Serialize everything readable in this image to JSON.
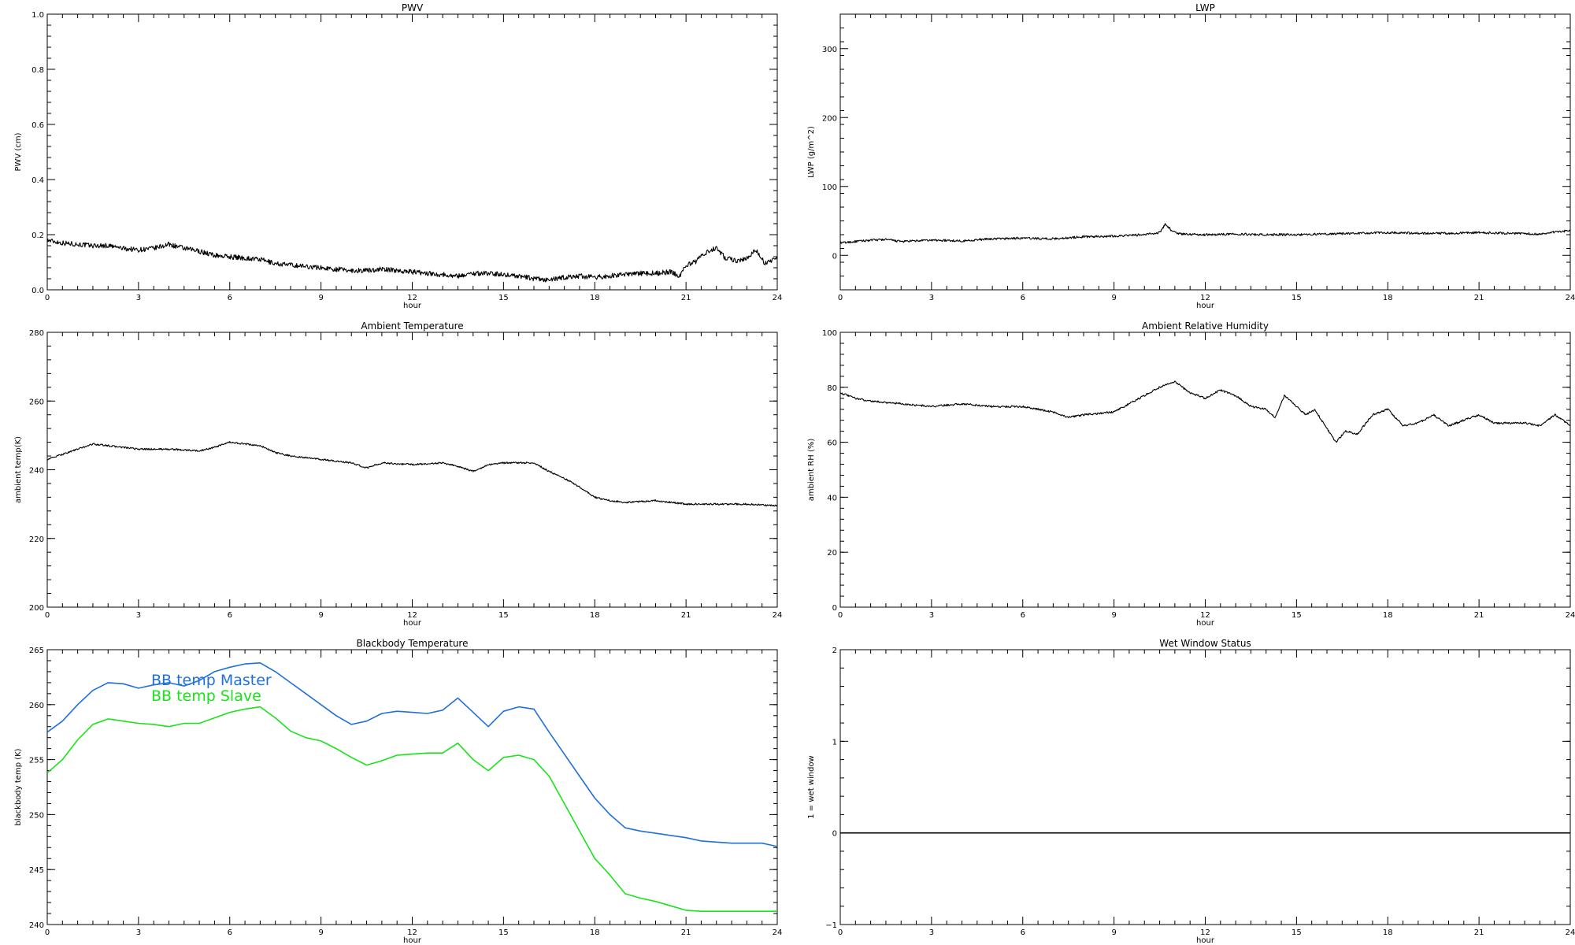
{
  "chart_data": [
    {
      "id": "pwv",
      "type": "line",
      "title": "PWV",
      "xlabel": "hour",
      "ylabel": "PWV (cm)",
      "xlim": [
        0,
        24
      ],
      "ylim": [
        0,
        1.0
      ],
      "xticks": [
        "0",
        "3",
        "6",
        "9",
        "12",
        "15",
        "18",
        "21",
        "24"
      ],
      "yticks": [
        "0.0",
        "0.2",
        "0.4",
        "0.6",
        "0.8",
        "1.0"
      ],
      "series": [
        {
          "color": "#000000",
          "noise": 0.009,
          "x": [
            0,
            0.5,
            1,
            1.5,
            2,
            2.5,
            3,
            3.5,
            4,
            4.5,
            5,
            5.5,
            6,
            6.5,
            7,
            7.5,
            8,
            8.5,
            9,
            9.5,
            10,
            10.5,
            11,
            11.5,
            12,
            12.5,
            13,
            13.5,
            14,
            14.5,
            15,
            15.5,
            16,
            16.5,
            17,
            17.5,
            18,
            18.5,
            19,
            19.5,
            20,
            20.5,
            20.8,
            21,
            21.3,
            21.7,
            22,
            22.3,
            22.7,
            23,
            23.3,
            23.6,
            24
          ],
          "y": [
            0.18,
            0.17,
            0.165,
            0.16,
            0.16,
            0.15,
            0.145,
            0.15,
            0.165,
            0.15,
            0.14,
            0.125,
            0.12,
            0.115,
            0.11,
            0.095,
            0.09,
            0.085,
            0.08,
            0.075,
            0.07,
            0.07,
            0.075,
            0.07,
            0.065,
            0.06,
            0.055,
            0.05,
            0.06,
            0.06,
            0.055,
            0.05,
            0.04,
            0.035,
            0.045,
            0.05,
            0.045,
            0.05,
            0.055,
            0.06,
            0.06,
            0.065,
            0.05,
            0.09,
            0.1,
            0.14,
            0.15,
            0.115,
            0.105,
            0.115,
            0.145,
            0.095,
            0.115
          ]
        }
      ]
    },
    {
      "id": "lwp",
      "type": "line",
      "title": "LWP",
      "xlabel": "hour",
      "ylabel": "LWP (g/m^2)",
      "xlim": [
        0,
        24
      ],
      "ylim": [
        -50,
        350
      ],
      "xticks": [
        "0",
        "3",
        "6",
        "9",
        "12",
        "15",
        "18",
        "21",
        "24"
      ],
      "yticks": [
        "0",
        "100",
        "200",
        "300"
      ],
      "series": [
        {
          "color": "#000000",
          "noise": 1.6,
          "x": [
            0,
            1,
            1.5,
            2,
            3,
            4,
            5,
            6,
            7,
            8,
            9,
            10,
            10.5,
            10.7,
            10.9,
            11.2,
            12,
            13,
            14,
            15,
            16,
            17,
            18,
            19,
            20,
            21,
            22,
            23,
            23.5,
            24
          ],
          "y": [
            18,
            22,
            23,
            20,
            22,
            21,
            24,
            25,
            24,
            27,
            28,
            30,
            33,
            46,
            35,
            31,
            30,
            31,
            30,
            30,
            31,
            32,
            33,
            32,
            32,
            33,
            32,
            31,
            34,
            36
          ]
        }
      ]
    },
    {
      "id": "ambient-temp",
      "type": "line",
      "title": "Ambient Temperature",
      "xlabel": "hour",
      "ylabel": "ambient temp(K)",
      "xlim": [
        0,
        24
      ],
      "ylim": [
        200,
        280
      ],
      "xticks": [
        "0",
        "3",
        "6",
        "9",
        "12",
        "15",
        "18",
        "21",
        "24"
      ],
      "yticks": [
        "200",
        "220",
        "240",
        "260",
        "280"
      ],
      "series": [
        {
          "color": "#000000",
          "noise": 0.25,
          "x": [
            0,
            0.5,
            1,
            1.5,
            2,
            2.5,
            3,
            4,
            5,
            5.5,
            6,
            6.5,
            7,
            7.5,
            8,
            9,
            10,
            10.5,
            11,
            12,
            13,
            13.5,
            14,
            14.5,
            15,
            16,
            16.5,
            17,
            17.5,
            18,
            18.5,
            19,
            20,
            21,
            22,
            23,
            24
          ],
          "y": [
            243,
            244.5,
            246,
            247.5,
            247,
            246.5,
            246,
            246,
            245.5,
            246.5,
            248,
            247.5,
            247,
            245,
            244,
            243,
            242,
            240.5,
            242,
            241.5,
            242,
            241,
            239.5,
            241.5,
            242,
            242,
            239.5,
            237.5,
            235,
            232,
            231,
            230.5,
            231,
            230,
            230,
            230,
            229.5
          ]
        }
      ]
    },
    {
      "id": "ambient-rh",
      "type": "line",
      "title": "Ambient Relative Humidity",
      "xlabel": "hour",
      "ylabel": "ambient RH (%)",
      "xlim": [
        0,
        24
      ],
      "ylim": [
        0,
        100
      ],
      "xticks": [
        "0",
        "3",
        "6",
        "9",
        "12",
        "15",
        "18",
        "21",
        "24"
      ],
      "yticks": [
        "0",
        "20",
        "40",
        "60",
        "80",
        "100"
      ],
      "series": [
        {
          "color": "#000000",
          "noise": 0.35,
          "x": [
            0,
            0.5,
            1,
            2,
            3,
            4,
            5,
            6,
            7,
            7.5,
            8,
            9,
            9.5,
            10,
            10.5,
            11,
            11.5,
            12,
            12.5,
            13,
            13.5,
            14,
            14.3,
            14.6,
            15,
            15.3,
            15.6,
            16,
            16.3,
            16.6,
            17,
            17.5,
            18,
            18.5,
            19,
            19.5,
            20,
            20.5,
            21,
            21.5,
            22,
            22.5,
            23,
            23.5,
            24
          ],
          "y": [
            78,
            76,
            75,
            74,
            73,
            74,
            73,
            73,
            71,
            69,
            70,
            71,
            74,
            77,
            80,
            82,
            78,
            76,
            79,
            77,
            73,
            72,
            69,
            77,
            73,
            70,
            72,
            65,
            60,
            64,
            63,
            70,
            72,
            66,
            67,
            70,
            66,
            68,
            70,
            67,
            67,
            67,
            66,
            70,
            66
          ]
        }
      ]
    },
    {
      "id": "blackbody-temp",
      "type": "line",
      "title": "Blackbody Temperature",
      "xlabel": "hour",
      "ylabel": "blackbody temp (K)",
      "xlim": [
        0,
        24
      ],
      "ylim": [
        240,
        265
      ],
      "xticks": [
        "0",
        "3",
        "6",
        "9",
        "12",
        "15",
        "18",
        "21",
        "24"
      ],
      "yticks": [
        "240",
        "245",
        "250",
        "255",
        "260",
        "265"
      ],
      "legend": "top-left",
      "series": [
        {
          "name": "BB temp Master",
          "color": "#1f6fdc",
          "noise": 0,
          "x": [
            0,
            0.5,
            1,
            1.5,
            2,
            2.5,
            3,
            3.5,
            4,
            4.5,
            5,
            5.5,
            6,
            6.5,
            7,
            7.5,
            8,
            8.5,
            9,
            9.5,
            10,
            10.5,
            11,
            11.5,
            12,
            12.5,
            13,
            13.5,
            14,
            14.5,
            15,
            15.5,
            16,
            16.5,
            17,
            17.5,
            18,
            18.5,
            19,
            19.5,
            20,
            20.5,
            21,
            21.5,
            22,
            22.5,
            23,
            23.5,
            24
          ],
          "y": [
            257.5,
            258.5,
            260,
            261.3,
            262,
            261.9,
            261.5,
            261.8,
            262,
            261.7,
            262.2,
            263,
            263.4,
            263.7,
            263.8,
            263,
            262,
            261,
            260,
            259,
            258.2,
            258.5,
            259.2,
            259.4,
            259.3,
            259.2,
            259.5,
            260.6,
            259.3,
            258,
            259.4,
            259.8,
            259.6,
            257.5,
            255.5,
            253.5,
            251.5,
            250,
            248.8,
            248.5,
            248.3,
            248.1,
            247.9,
            247.6,
            247.5,
            247.4,
            247.4,
            247.4,
            247.1
          ]
        },
        {
          "name": "BB temp Slave",
          "color": "#19e319",
          "noise": 0,
          "x": [
            0,
            0.5,
            1,
            1.5,
            2,
            2.5,
            3,
            3.5,
            4,
            4.5,
            5,
            5.5,
            6,
            6.5,
            7,
            7.5,
            8,
            8.5,
            9,
            9.5,
            10,
            10.5,
            11,
            11.5,
            12,
            12.5,
            13,
            13.5,
            14,
            14.5,
            15,
            15.5,
            16,
            16.5,
            17,
            17.5,
            18,
            18.5,
            19,
            19.5,
            20,
            20.5,
            21,
            21.5,
            22,
            22.5,
            23,
            23.5,
            24
          ],
          "y": [
            253.8,
            255,
            256.8,
            258.2,
            258.7,
            258.5,
            258.3,
            258.2,
            258,
            258.3,
            258.3,
            258.8,
            259.3,
            259.6,
            259.8,
            258.8,
            257.6,
            257,
            256.7,
            256,
            255.2,
            254.5,
            254.9,
            255.4,
            255.5,
            255.6,
            255.6,
            256.5,
            255,
            254,
            255.2,
            255.4,
            255,
            253.5,
            251,
            248.5,
            246,
            244.5,
            242.8,
            242.4,
            242.1,
            241.7,
            241.3,
            241.2,
            241.2,
            241.2,
            241.2,
            241.2,
            241.2
          ]
        }
      ]
    },
    {
      "id": "wet-window",
      "type": "line",
      "title": "Wet Window Status",
      "xlabel": "hour",
      "ylabel": "1 = wet window",
      "xlim": [
        0,
        24
      ],
      "ylim": [
        -1,
        2
      ],
      "xticks": [
        "0",
        "3",
        "6",
        "9",
        "12",
        "15",
        "18",
        "21",
        "24"
      ],
      "yticks": [
        "−1",
        "0",
        "1",
        "2"
      ],
      "series": [
        {
          "color": "#000000",
          "noise": 0,
          "x": [
            0,
            24
          ],
          "y": [
            0,
            0
          ]
        }
      ]
    }
  ]
}
